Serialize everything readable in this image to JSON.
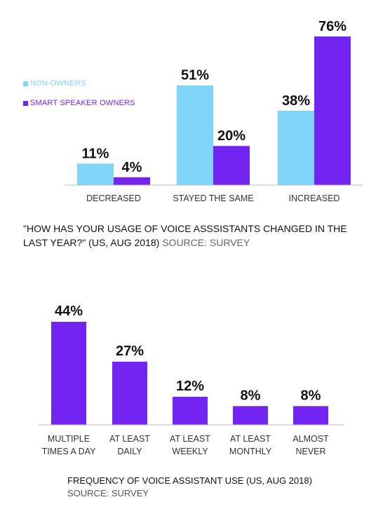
{
  "colors": {
    "non_owners": "#80d5fb",
    "smart_speaker_owners": "#7224f0",
    "axis": "#bbbbbb"
  },
  "legend": {
    "non_owners": "NON-OWNERS",
    "smart_speaker_owners": "SMART SPEAKER OWNERS"
  },
  "captions": {
    "chart1_question": "\"HOW HAS YOUR USAGE OF VOICE ASSSISTANTS CHANGED IN THE LAST YEAR?\" (US, AUG 2018)",
    "chart1_source": "SOURCE: SURVEY",
    "chart2_title": "FREQUENCY OF VOICE ASSISTANT USE (US, AUG 2018)",
    "chart2_source": "SOURCE: SURVEY"
  },
  "chart_data": [
    {
      "type": "bar",
      "categories": [
        "DECREASED",
        "STAYED THE SAME",
        "INCREASED"
      ],
      "series": [
        {
          "name": "NON-OWNERS",
          "values": [
            11,
            51,
            38
          ],
          "labels": [
            "11%",
            "51%",
            "38%"
          ]
        },
        {
          "name": "SMART SPEAKER OWNERS",
          "values": [
            4,
            20,
            76
          ],
          "labels": [
            "4%",
            "20%",
            "76%"
          ]
        }
      ],
      "ylim": [
        0,
        76
      ],
      "grid": false,
      "legend_position": "left"
    },
    {
      "type": "bar",
      "categories": [
        [
          "MULTIPLE",
          "TIMES A DAY"
        ],
        [
          "AT LEAST",
          "DAILY"
        ],
        [
          "AT LEAST",
          "WEEKLY"
        ],
        [
          "AT LEAST",
          "MONTHLY"
        ],
        [
          "ALMOST",
          "NEVER"
        ]
      ],
      "values": [
        44,
        27,
        12,
        8,
        8
      ],
      "labels": [
        "44%",
        "27%",
        "12%",
        "8%",
        "8%"
      ],
      "ylim": [
        0,
        44
      ],
      "grid": false
    }
  ]
}
